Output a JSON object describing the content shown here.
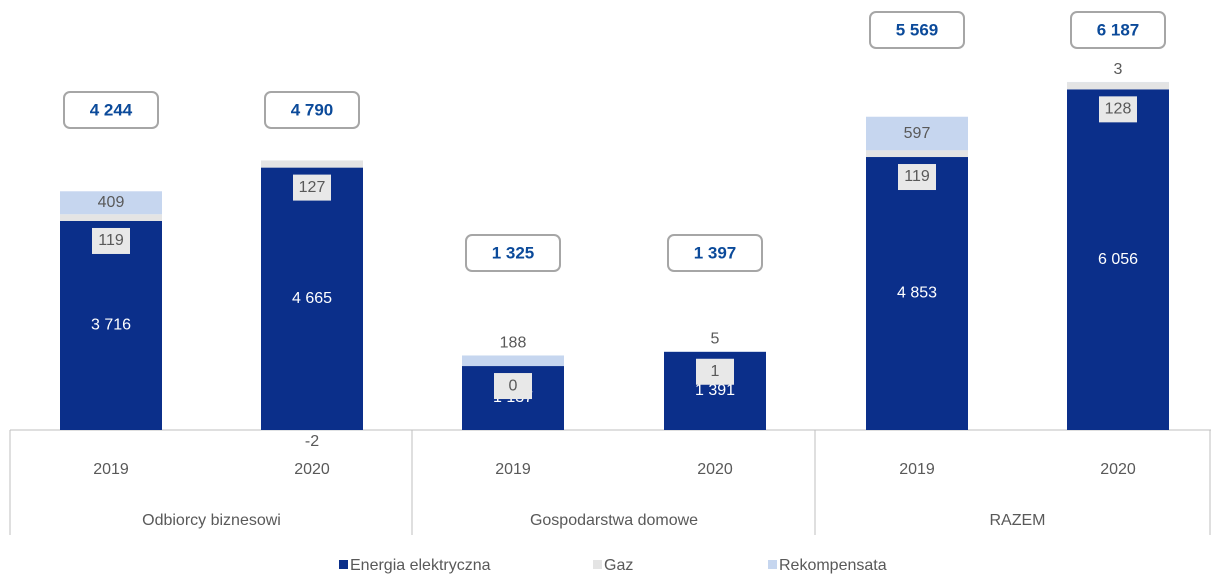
{
  "chart_data": {
    "type": "stacked_bar",
    "categories": [
      "2019",
      "2020",
      "2019",
      "2020",
      "2019",
      "2020"
    ],
    "groups": [
      "Odbiorcy biznesowi",
      "Gospodarstwa domowe",
      "RAZEM"
    ],
    "series": [
      {
        "name": "Energia elektryczna",
        "color": "#0b2f8a",
        "values": [
          3716,
          4665,
          1137,
          1391,
          4853,
          6056
        ],
        "value_labels": [
          "3 716",
          "4 665",
          "1 137",
          "1 391",
          "4 853",
          "6 056"
        ]
      },
      {
        "name": "Gaz",
        "color": "#e4e4e4",
        "values": [
          119,
          127,
          0,
          1,
          119,
          128
        ]
      },
      {
        "name": "Rekompensata",
        "color": "#c6d6ef",
        "values": [
          409,
          -2,
          188,
          5,
          597,
          3
        ]
      }
    ],
    "totals": [
      4244,
      4790,
      1325,
      1397,
      5569,
      6187
    ],
    "total_labels": [
      "4 244",
      "4 790",
      "1 325",
      "1 397",
      "5 569",
      "6 187"
    ],
    "ylim": [
      0,
      6500
    ]
  }
}
